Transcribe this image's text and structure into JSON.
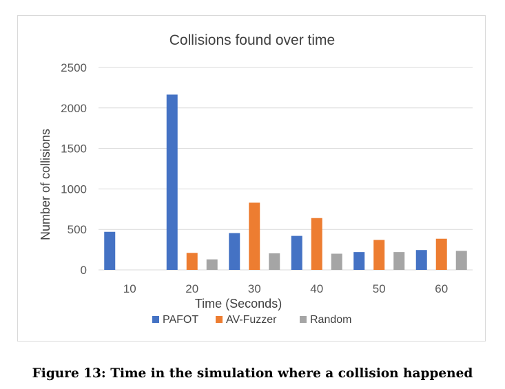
{
  "chart_data": {
    "type": "bar",
    "title": "Collisions found over time",
    "xlabel": "Time (Seconds)",
    "ylabel": "Number of collisions",
    "categories": [
      "10",
      "20",
      "30",
      "40",
      "50",
      "60"
    ],
    "series": [
      {
        "name": "PAFOT",
        "color": "#4472c4",
        "values": [
          470,
          2165,
          455,
          420,
          220,
          245
        ]
      },
      {
        "name": "AV-Fuzzer",
        "color": "#ed7d31",
        "values": [
          0,
          210,
          830,
          640,
          370,
          385
        ]
      },
      {
        "name": "Random",
        "color": "#a5a5a5",
        "values": [
          0,
          130,
          205,
          200,
          220,
          235
        ]
      }
    ],
    "ylim": [
      0,
      2500
    ],
    "yticks": [
      "0",
      "500",
      "1000",
      "1500",
      "2000",
      "2500"
    ],
    "grid": true,
    "legend": "bottom"
  },
  "caption": "Figure 13: Time in the simulation where a collision happened"
}
